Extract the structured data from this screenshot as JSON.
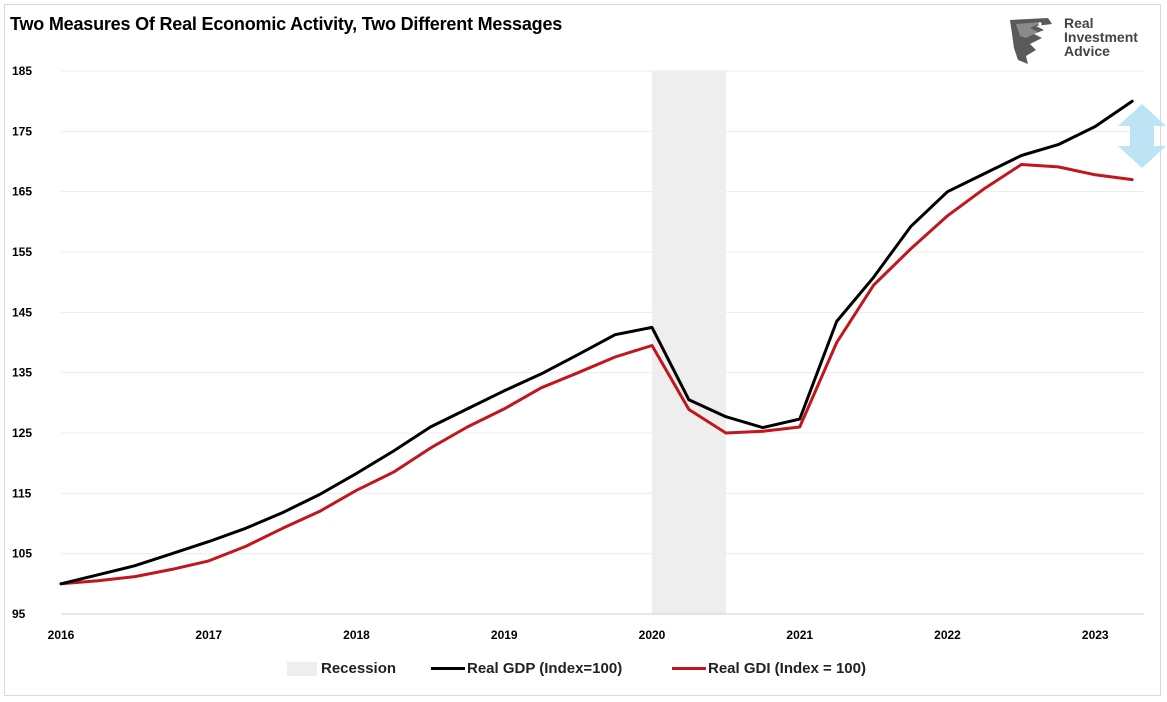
{
  "header": {
    "title": "Two Measures Of Real Economic Activity, Two Different Messages"
  },
  "logo": {
    "line1": "Real",
    "line2": "Investment",
    "line3": "Advice",
    "icon": "eagle-head-icon"
  },
  "colors": {
    "gdp": "#000000",
    "gdi": "#c0161c",
    "recession": "#eeeeee",
    "arrow": "#bde3f5",
    "grid": "#ececec"
  },
  "chart_data": {
    "type": "line",
    "title": "Two Measures Of Real Economic Activity, Two Different Messages",
    "xlabel": "",
    "ylabel": "",
    "xlim": [
      2016.0,
      2023.33
    ],
    "ylim": [
      95,
      185
    ],
    "yticks": [
      95,
      105,
      115,
      125,
      135,
      145,
      155,
      165,
      175,
      185
    ],
    "xticks": [
      "2016",
      "2017",
      "2018",
      "2019",
      "2020",
      "2021",
      "2022",
      "2023"
    ],
    "grid": true,
    "legend_position": "bottom",
    "recession": {
      "label": "Recession",
      "start": 2020.0,
      "end": 2020.5
    },
    "x": [
      2016.0,
      2016.25,
      2016.5,
      2016.75,
      2017.0,
      2017.25,
      2017.5,
      2017.75,
      2018.0,
      2018.25,
      2018.5,
      2018.75,
      2019.0,
      2019.25,
      2019.5,
      2019.75,
      2020.0,
      2020.25,
      2020.5,
      2020.75,
      2021.0,
      2021.25,
      2021.5,
      2021.75,
      2022.0,
      2022.25,
      2022.5,
      2022.75,
      2023.0,
      2023.25
    ],
    "series": [
      {
        "name": "Real GDP (Index=100)",
        "values": [
          100,
          101.5,
          103,
          105,
          107,
          109.2,
          111.8,
          114.8,
          118.3,
          122,
          126,
          129,
          132,
          134.8,
          138,
          141.3,
          142.5,
          130.5,
          127.7,
          125.9,
          127.3,
          143.5,
          150.8,
          159.2,
          165,
          168,
          171,
          172.8,
          175.8,
          180
        ]
      },
      {
        "name": "Real GDI (Index = 100)",
        "values": [
          100,
          100.5,
          101.2,
          102.4,
          103.8,
          106.2,
          109.2,
          112,
          115.5,
          118.5,
          122.5,
          126,
          129,
          132.5,
          135,
          137.6,
          139.5,
          128.9,
          125,
          125.3,
          126,
          140,
          149.5,
          155.5,
          161,
          165.5,
          169.5,
          169.1,
          167.8,
          167
        ]
      }
    ]
  },
  "legend": {
    "recession": "Recession",
    "gdp": "Real GDP (Index=100)",
    "gdi": "Real GDI (Index = 100)"
  }
}
